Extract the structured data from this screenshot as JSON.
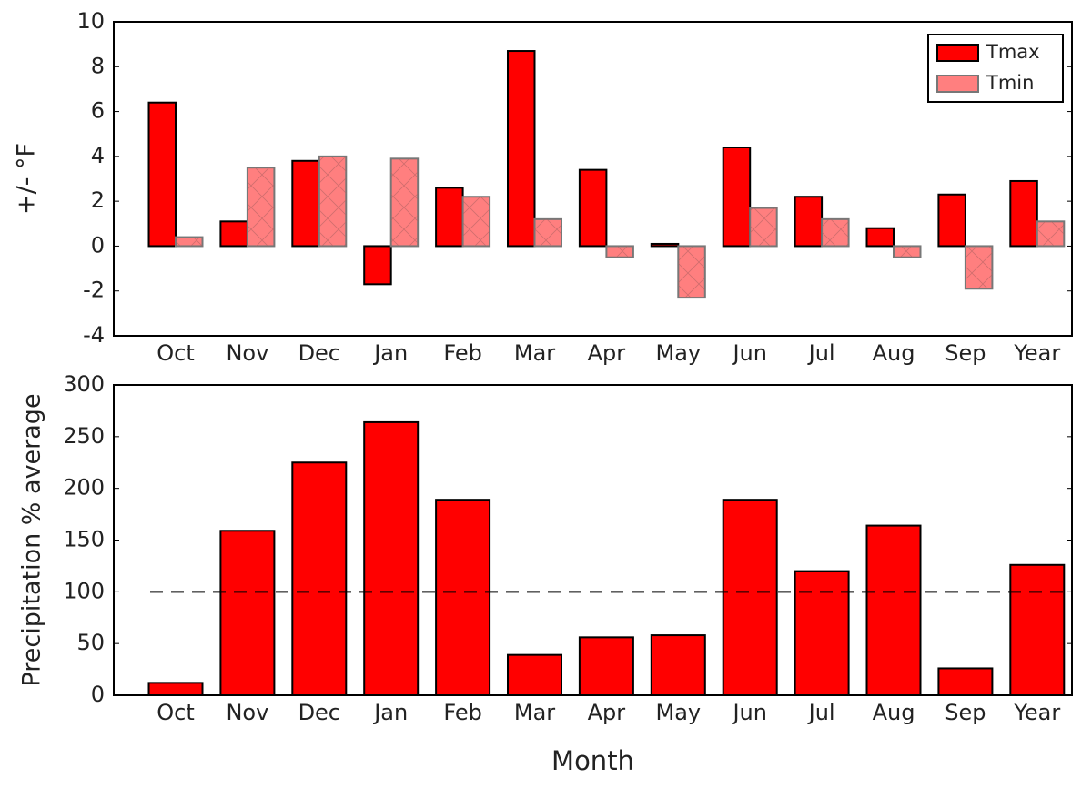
{
  "chart_data": [
    {
      "type": "bar",
      "ylabel": "+/- °F",
      "categories": [
        "Oct",
        "Nov",
        "Dec",
        "Jan",
        "Feb",
        "Mar",
        "Apr",
        "May",
        "Jun",
        "Jul",
        "Aug",
        "Sep",
        "Year"
      ],
      "series": [
        {
          "name": "Tmax",
          "color": "#ff0000",
          "values": [
            6.4,
            1.1,
            3.8,
            -1.7,
            2.6,
            8.7,
            3.4,
            0.1,
            4.4,
            2.2,
            0.8,
            2.3,
            2.9
          ]
        },
        {
          "name": "Tmin",
          "color": "#ff7f7f",
          "values": [
            0.4,
            3.5,
            4.0,
            3.9,
            2.2,
            1.2,
            -0.5,
            -2.3,
            1.7,
            1.2,
            -0.5,
            -1.9,
            1.1
          ]
        }
      ],
      "ylim": [
        -4,
        10
      ],
      "yticks": [
        -4,
        -2,
        0,
        2,
        4,
        6,
        8,
        10
      ],
      "legend": "upper right"
    },
    {
      "type": "bar",
      "ylabel": "Precipitation % average",
      "xlabel": "Month",
      "categories": [
        "Oct",
        "Nov",
        "Dec",
        "Jan",
        "Feb",
        "Mar",
        "Apr",
        "May",
        "Jun",
        "Jul",
        "Aug",
        "Sep",
        "Year"
      ],
      "series": [
        {
          "name": "Precipitation",
          "color": "#ff0000",
          "values": [
            12,
            159,
            225,
            264,
            189,
            39,
            56,
            58,
            189,
            120,
            164,
            26,
            126
          ]
        }
      ],
      "reference_line": 100,
      "ylim": [
        0,
        300
      ],
      "yticks": [
        0,
        50,
        100,
        150,
        200,
        250,
        300
      ]
    }
  ]
}
